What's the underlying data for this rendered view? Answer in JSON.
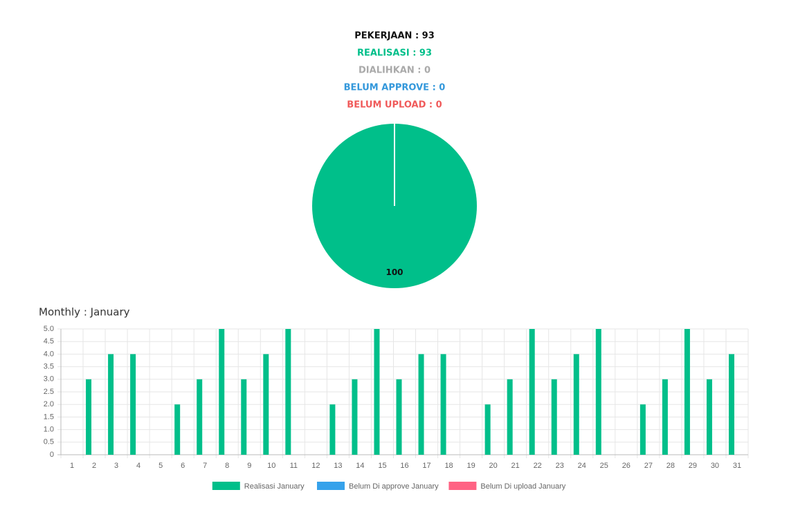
{
  "stats": [
    {
      "text": "PEKERJAAN : 93",
      "color": "#111111"
    },
    {
      "text": "REALISASI : 93",
      "color": "#00bf8a"
    },
    {
      "text": "DIALIHKAN : 0",
      "color": "#aaaaaa"
    },
    {
      "text": "BELUM APPROVE : 0",
      "color": "#3498db"
    },
    {
      "text": "BELUM UPLOAD : 0",
      "color": "#f05a5a"
    }
  ],
  "chart_data": [
    {
      "type": "pie",
      "values": [
        100
      ],
      "colors": [
        "#00bf8a"
      ]
    },
    {
      "type": "bar",
      "title": "Monthly : January",
      "categories": [
        "1",
        "2",
        "3",
        "4",
        "5",
        "6",
        "7",
        "8",
        "9",
        "10",
        "11",
        "12",
        "13",
        "14",
        "15",
        "16",
        "17",
        "18",
        "19",
        "20",
        "21",
        "22",
        "23",
        "24",
        "25",
        "26",
        "27",
        "28",
        "29",
        "30",
        "31"
      ],
      "series": [
        {
          "name": "Realisasi January",
          "color": "#00bf8a",
          "values": [
            0,
            3,
            4,
            4,
            0,
            2,
            3,
            5,
            3,
            4,
            5,
            0,
            2,
            3,
            5,
            3,
            4,
            4,
            0,
            2,
            3,
            5,
            3,
            4,
            5,
            0,
            2,
            3,
            5,
            3,
            4
          ]
        },
        {
          "name": "Belum Di approve January",
          "color": "#36a2eb",
          "values": [
            0,
            0,
            0,
            0,
            0,
            0,
            0,
            0,
            0,
            0,
            0,
            0,
            0,
            0,
            0,
            0,
            0,
            0,
            0,
            0,
            0,
            0,
            0,
            0,
            0,
            0,
            0,
            0,
            0,
            0,
            0
          ]
        },
        {
          "name": "Belum Di upload January",
          "color": "#ff6384",
          "values": [
            0,
            0,
            0,
            0,
            0,
            0,
            0,
            0,
            0,
            0,
            0,
            0,
            0,
            0,
            0,
            0,
            0,
            0,
            0,
            0,
            0,
            0,
            0,
            0,
            0,
            0,
            0,
            0,
            0,
            0,
            0
          ]
        }
      ],
      "ylim": [
        0,
        5
      ],
      "yticks": [
        0,
        0.5,
        {
          "value": 1,
          "label": "1.0"
        },
        1.5,
        {
          "value": 2,
          "label": "2.0"
        },
        2.5,
        {
          "value": 3,
          "label": "3.0"
        },
        3.5,
        {
          "value": 4,
          "label": "4.0"
        },
        4.5,
        {
          "value": 5,
          "label": "5.0"
        }
      ],
      "grid": true
    }
  ]
}
